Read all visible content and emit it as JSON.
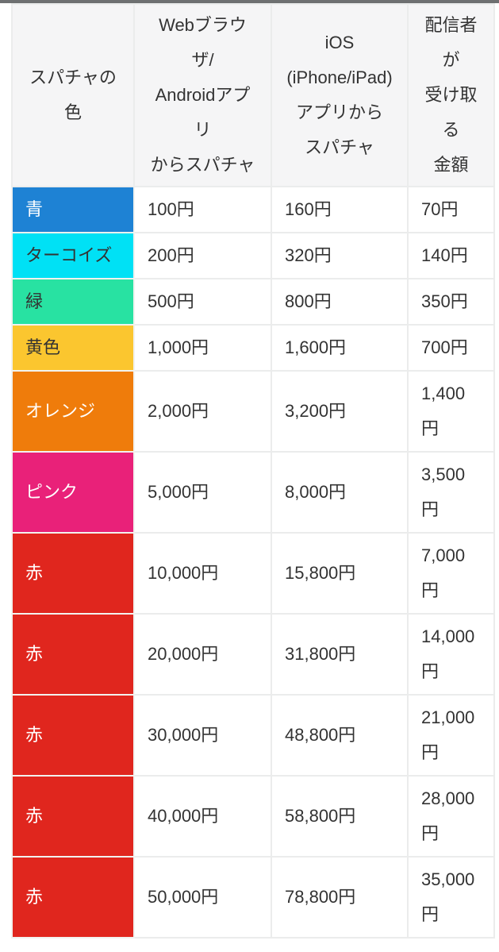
{
  "page": {
    "top_bar_color": "#6e7071",
    "background": "#ffffff"
  },
  "table": {
    "header_bg": "#f5f5f6",
    "border_color": "#ebecec",
    "text_color": "#333333",
    "columns": [
      {
        "label": "スパチャの\n色"
      },
      {
        "label": "Webブラウ\nザ/\nAndroidアプ\nリ\nからスパチャ"
      },
      {
        "label": "iOS\n(iPhone/iPad)\nアプリから\nスパチャ"
      },
      {
        "label": "配信者\nが\n受け取\nる\n金額"
      }
    ],
    "rows": [
      {
        "color_name": "青",
        "color_hex": "#1e82d4",
        "text_color": "#ffffff",
        "web_android": "100円",
        "ios": "160円",
        "creator_receives": "70円"
      },
      {
        "color_name": "ターコイズ",
        "color_hex": "#00e1f5",
        "text_color": "#333333",
        "web_android": "200円",
        "ios": "320円",
        "creator_receives": "140円"
      },
      {
        "color_name": "緑",
        "color_hex": "#28e2a2",
        "text_color": "#333333",
        "web_android": "500円",
        "ios": "800円",
        "creator_receives": "350円"
      },
      {
        "color_name": "黄色",
        "color_hex": "#fbc62f",
        "text_color": "#333333",
        "web_android": "1,000円",
        "ios": "1,600円",
        "creator_receives": "700円"
      },
      {
        "color_name": "オレンジ",
        "color_hex": "#ef7c0b",
        "text_color": "#ffffff",
        "web_android": "2,000円",
        "ios": "3,200円",
        "creator_receives": "1,400円"
      },
      {
        "color_name": "ピンク",
        "color_hex": "#e92179",
        "text_color": "#ffffff",
        "web_android": "5,000円",
        "ios": "8,000円",
        "creator_receives": "3,500円"
      },
      {
        "color_name": "赤",
        "color_hex": "#e0261e",
        "text_color": "#ffffff",
        "web_android": "10,000円",
        "ios": "15,800円",
        "creator_receives": "7,000円"
      },
      {
        "color_name": "赤",
        "color_hex": "#e0261e",
        "text_color": "#ffffff",
        "web_android": "20,000円",
        "ios": "31,800円",
        "creator_receives": "14,000円"
      },
      {
        "color_name": "赤",
        "color_hex": "#e0261e",
        "text_color": "#ffffff",
        "web_android": "30,000円",
        "ios": "48,800円",
        "creator_receives": "21,000円"
      },
      {
        "color_name": "赤",
        "color_hex": "#e0261e",
        "text_color": "#ffffff",
        "web_android": "40,000円",
        "ios": "58,800円",
        "creator_receives": "28,000円"
      },
      {
        "color_name": "赤",
        "color_hex": "#e0261e",
        "text_color": "#ffffff",
        "web_android": "50,000円",
        "ios": "78,800円",
        "creator_receives": "35,000円"
      }
    ]
  },
  "chart_data": {
    "type": "table",
    "title": "",
    "columns": [
      "スパチャの色",
      "Webブラウザ/Androidアプリからスパチャ",
      "iOS(iPhone/iPad)アプリからスパチャ",
      "配信者が受け取る金額"
    ],
    "rows": [
      [
        "青",
        "100円",
        "160円",
        "70円"
      ],
      [
        "ターコイズ",
        "200円",
        "320円",
        "140円"
      ],
      [
        "緑",
        "500円",
        "800円",
        "350円"
      ],
      [
        "黄色",
        "1,000円",
        "1,600円",
        "700円"
      ],
      [
        "オレンジ",
        "2,000円",
        "3,200円",
        "1,400円"
      ],
      [
        "ピンク",
        "5,000円",
        "8,000円",
        "3,500円"
      ],
      [
        "赤",
        "10,000円",
        "15,800円",
        "7,000円"
      ],
      [
        "赤",
        "20,000円",
        "31,800円",
        "14,000円"
      ],
      [
        "赤",
        "30,000円",
        "48,800円",
        "21,000円"
      ],
      [
        "赤",
        "40,000円",
        "58,800円",
        "28,000円"
      ],
      [
        "赤",
        "50,000円",
        "78,800円",
        "35,000円"
      ]
    ],
    "row_colors": [
      "#1e82d4",
      "#00e1f5",
      "#28e2a2",
      "#fbc62f",
      "#ef7c0b",
      "#e92179",
      "#e0261e",
      "#e0261e",
      "#e0261e",
      "#e0261e",
      "#e0261e"
    ]
  }
}
